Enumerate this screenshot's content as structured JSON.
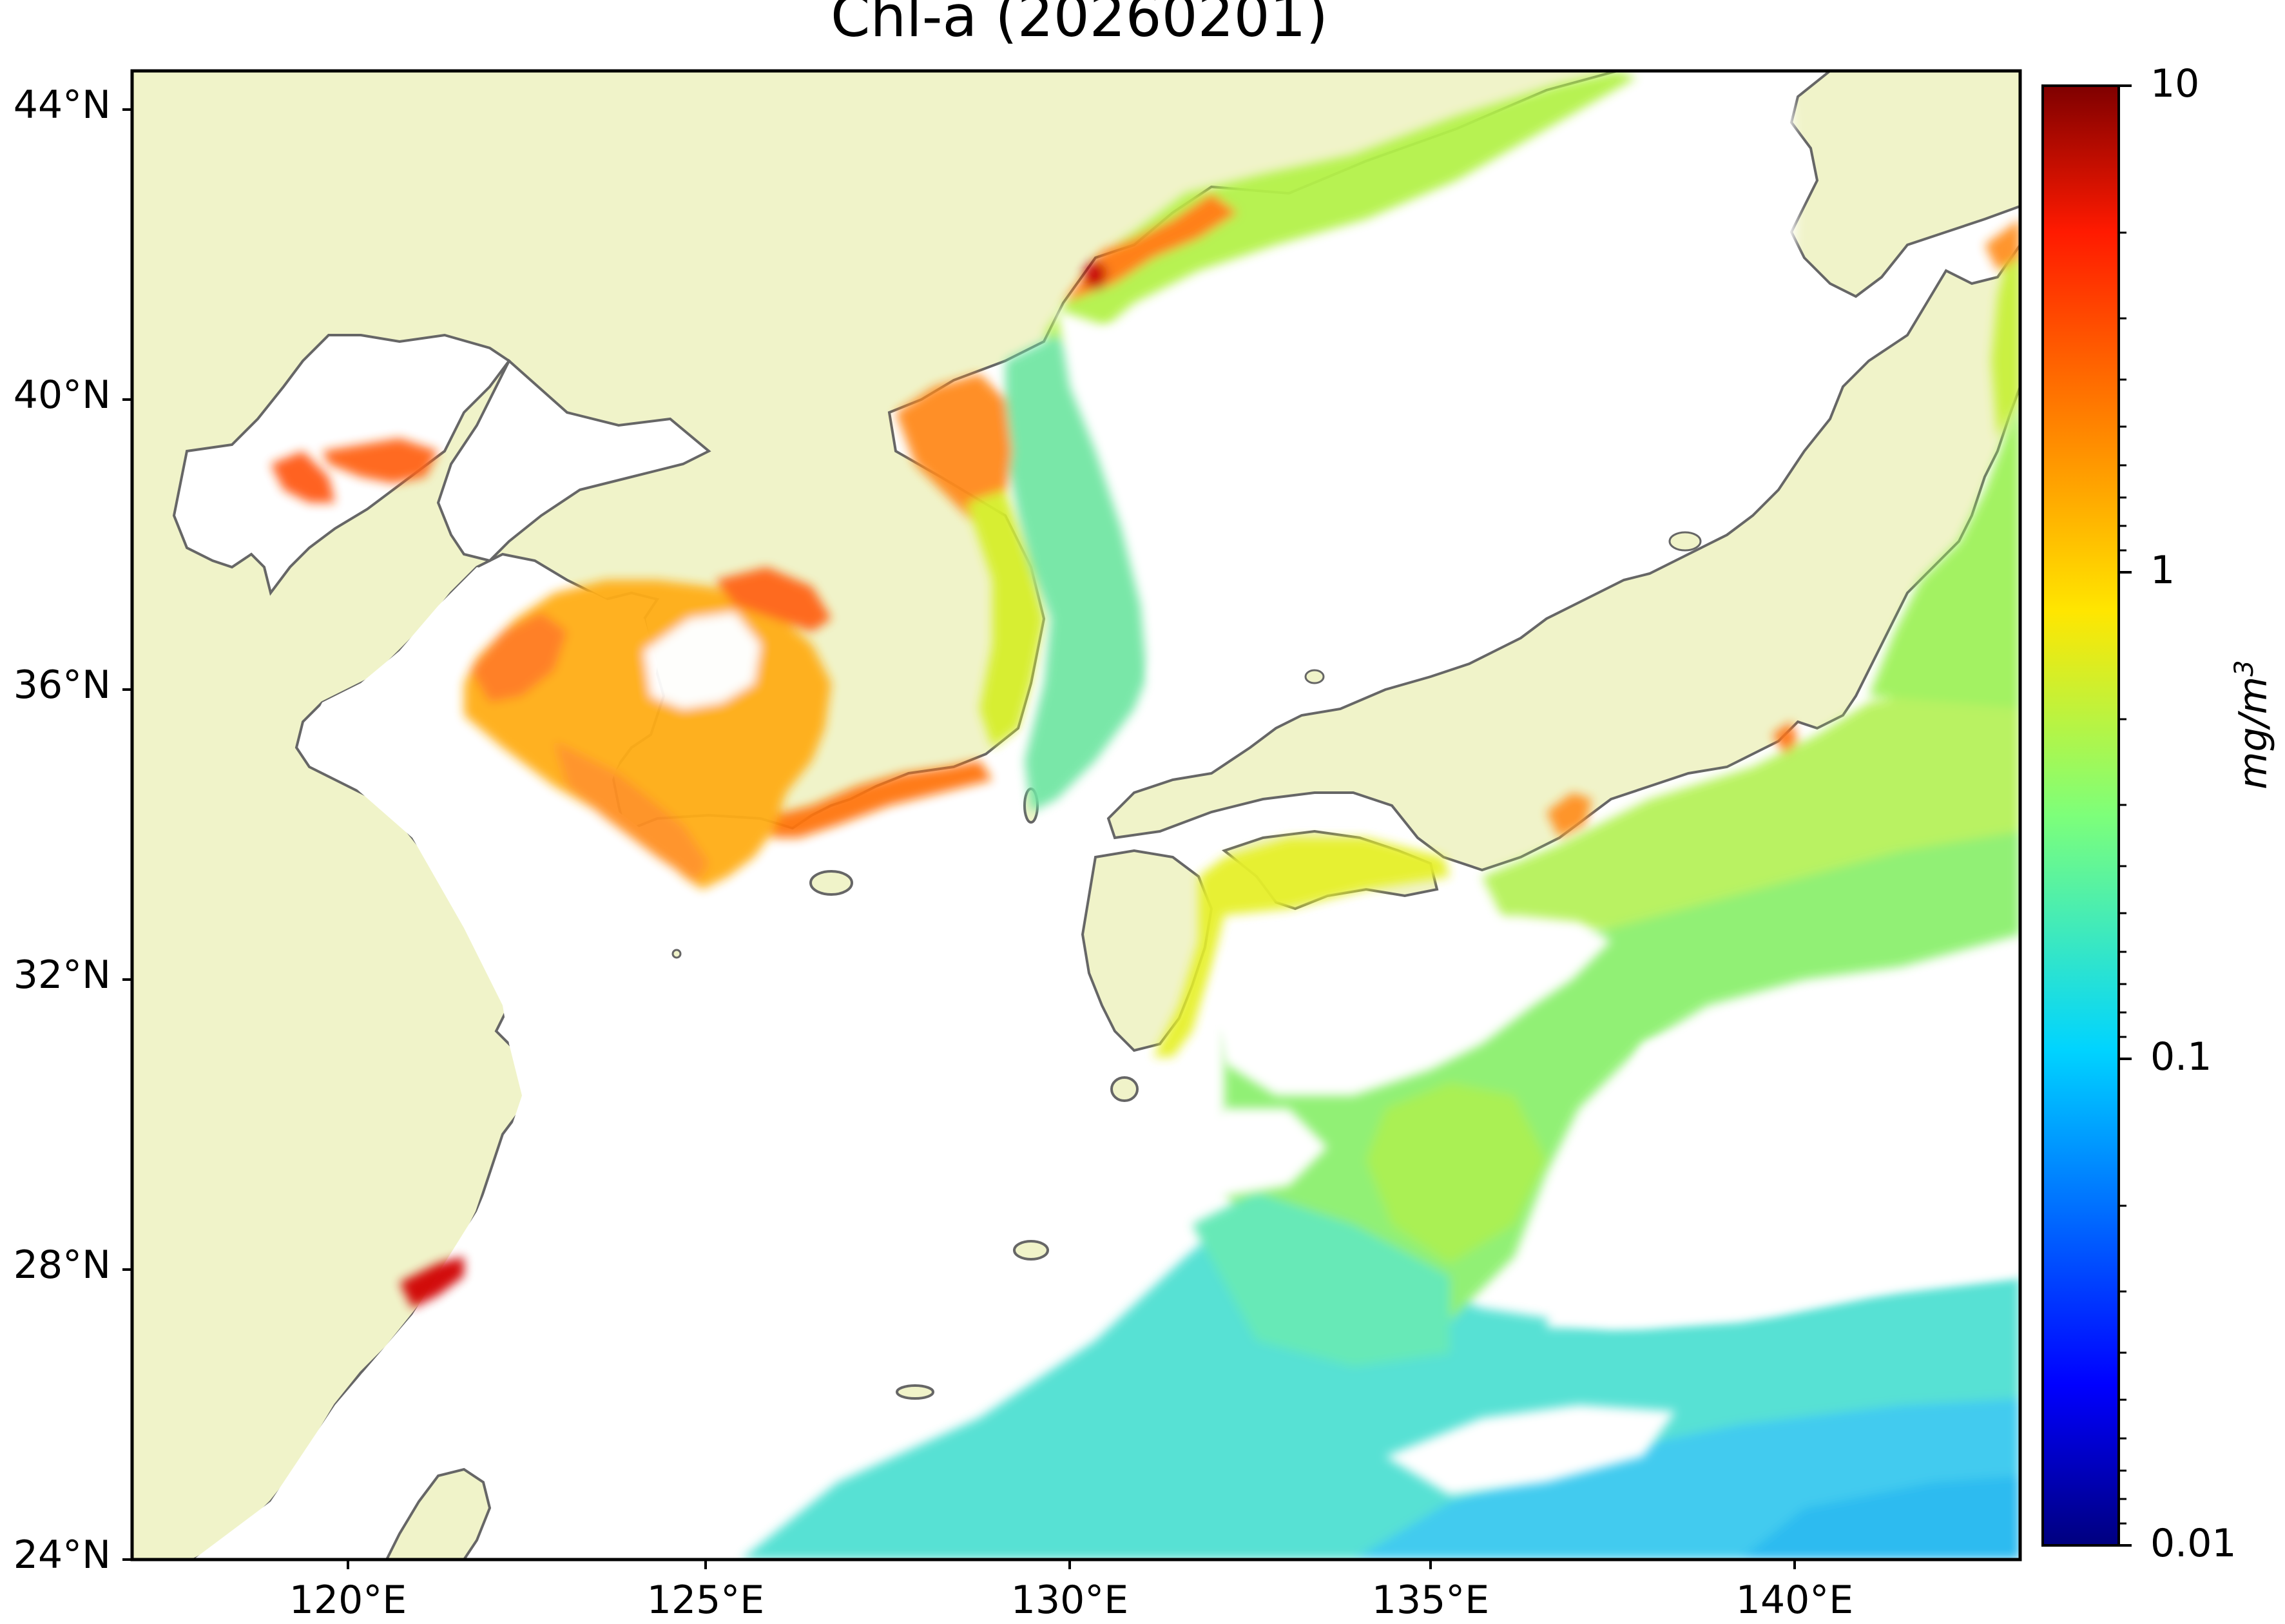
{
  "title": "Chl-a (20260201)",
  "map": {
    "lat_range": [
      24,
      44.5
    ],
    "lon_range": [
      116.8,
      143.0
    ],
    "land_color": "#f0f3c9",
    "ocean_no_data_color": "#ffffff",
    "coastline_color": "#666666",
    "y_ticks": [
      "44°N",
      "40°N",
      "36°N",
      "32°N",
      "28°N",
      "24°N"
    ],
    "x_ticks": [
      "120°E",
      "125°E",
      "130°E",
      "135°E",
      "140°E"
    ]
  },
  "colorbar": {
    "label": "mg/m",
    "label_sup": "3",
    "scale": "log",
    "range": [
      0.01,
      10
    ],
    "tick_labels": [
      "10",
      "1",
      "0.1",
      "0.01"
    ],
    "colormap": "jet",
    "colors": [
      "#00007f",
      "#0000ff",
      "#007fff",
      "#00ffff",
      "#7fff7f",
      "#ffff00",
      "#ff7f00",
      "#ff0000",
      "#7f0000"
    ]
  }
}
